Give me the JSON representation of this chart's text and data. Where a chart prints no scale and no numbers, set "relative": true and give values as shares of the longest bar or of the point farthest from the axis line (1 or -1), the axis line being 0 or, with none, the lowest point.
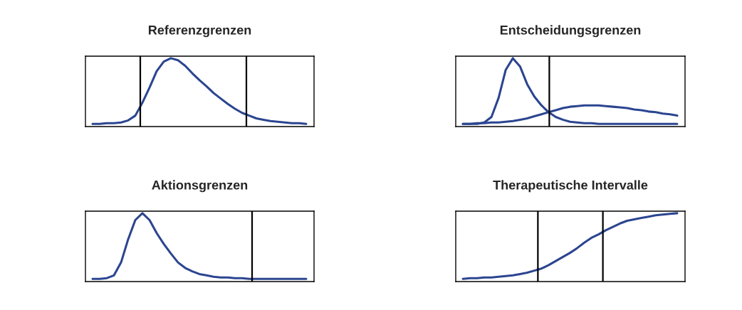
{
  "chart_data": [
    {
      "type": "line",
      "title": "Referenzgrenzen",
      "relative": true,
      "tick_labels": false,
      "categories": [
        null,
        null,
        null,
        null,
        null,
        null,
        null,
        null,
        null,
        null,
        null,
        null,
        null,
        null,
        null,
        null,
        null,
        null,
        null,
        null,
        null,
        null,
        null,
        null,
        null,
        null,
        null,
        null,
        null,
        null,
        null
      ],
      "series": [
        {
          "color": "#2b4590",
          "values": [
            0.04,
            0.04,
            0.05,
            0.05,
            0.06,
            0.09,
            0.16,
            0.35,
            0.57,
            0.81,
            0.95,
            1,
            0.97,
            0.89,
            0.78,
            0.68,
            0.59,
            0.49,
            0.41,
            0.33,
            0.26,
            0.2,
            0.16,
            0.12,
            0.1,
            0.08,
            0.07,
            0.06,
            0.05,
            0.05,
            0.04
          ]
        }
      ],
      "line_style": "solid"
    },
    {
      "type": "line",
      "title": "Entscheidungsgrenzen",
      "relative": true,
      "tick_labels": false,
      "categories": [
        null,
        null,
        null,
        null,
        null,
        null,
        null,
        null,
        null,
        null,
        null,
        null,
        null,
        null,
        null,
        null,
        null,
        null,
        null,
        null,
        null,
        null,
        null,
        null,
        null,
        null,
        null,
        null,
        null,
        null,
        null
      ],
      "series": [
        {
          "color": "#2b4590",
          "values": [
            0.04,
            0.04,
            0.04,
            0.06,
            0.14,
            0.42,
            0.83,
            1,
            0.88,
            0.62,
            0.44,
            0.31,
            0.21,
            0.14,
            0.1,
            0.07,
            0.06,
            0.05,
            0.05,
            0.04,
            0.04,
            0.04,
            0.04,
            0.04,
            0.04,
            0.04,
            0.04,
            0.04,
            0.04,
            0.04,
            0.04
          ]
        },
        {
          "color": "#2b4590",
          "values": [
            0.04,
            0.04,
            0.05,
            0.05,
            0.06,
            0.06,
            0.07,
            0.08,
            0.1,
            0.12,
            0.15,
            0.18,
            0.21,
            0.24,
            0.27,
            0.29,
            0.3,
            0.31,
            0.31,
            0.31,
            0.3,
            0.29,
            0.28,
            0.27,
            0.25,
            0.24,
            0.22,
            0.21,
            0.19,
            0.18,
            0.16
          ]
        }
      ],
      "line_style": "solid"
    },
    {
      "type": "line",
      "title": "Aktionsgrenzen",
      "relative": true,
      "tick_labels": false,
      "categories": [
        null,
        null,
        null,
        null,
        null,
        null,
        null,
        null,
        null,
        null,
        null,
        null,
        null,
        null,
        null,
        null,
        null,
        null,
        null,
        null,
        null,
        null,
        null,
        null,
        null,
        null,
        null,
        null,
        null,
        null,
        null
      ],
      "series": [
        {
          "color": "#2b4590",
          "values": [
            0.04,
            0.04,
            0.05,
            0.09,
            0.28,
            0.62,
            0.9,
            1,
            0.9,
            0.71,
            0.55,
            0.41,
            0.28,
            0.2,
            0.15,
            0.11,
            0.09,
            0.07,
            0.06,
            0.06,
            0.05,
            0.05,
            0.04,
            0.04,
            0.04,
            0.04,
            0.04,
            0.04,
            0.04,
            0.04,
            0.04
          ]
        }
      ],
      "line_style": "solid"
    },
    {
      "type": "line",
      "title": "Therapeutische Intervalle",
      "relative": true,
      "tick_labels": false,
      "categories": [
        null,
        null,
        null,
        null,
        null,
        null,
        null,
        null,
        null,
        null,
        null,
        null,
        null,
        null,
        null,
        null,
        null,
        null,
        null,
        null,
        null,
        null,
        null,
        null,
        null,
        null,
        null,
        null,
        null,
        null,
        null
      ],
      "series": [
        {
          "color": "#2b4590",
          "values": [
            0.04,
            0.05,
            0.05,
            0.06,
            0.06,
            0.07,
            0.08,
            0.09,
            0.11,
            0.13,
            0.16,
            0.19,
            0.24,
            0.3,
            0.36,
            0.42,
            0.49,
            0.57,
            0.64,
            0.69,
            0.75,
            0.8,
            0.85,
            0.89,
            0.91,
            0.93,
            0.95,
            0.97,
            0.98,
            0.99,
            1
          ]
        }
      ],
      "line_style": "solid"
    }
  ]
}
